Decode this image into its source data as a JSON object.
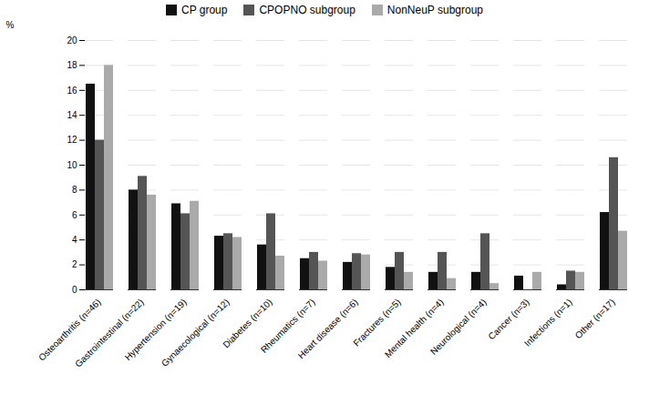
{
  "chart_data": {
    "type": "bar",
    "categories": [
      "Osteoarthritis (n=46)",
      "Gastrointestinal (n=22)",
      "Hypertension (n=19)",
      "Gynaecological (n=12)",
      "Diabetes (n=10)",
      "Rheumatics (n=7)",
      "Heart disease (n=6)",
      "Fractures (n=5)",
      "Mental health (n=4)",
      "Neurological (n=4)",
      "Cancer (n=3)",
      "Infections (n=1)",
      "Other (n=17)"
    ],
    "series": [
      {
        "name": "CP group",
        "color": "#111111",
        "values": [
          16.5,
          8.0,
          6.9,
          4.3,
          3.6,
          2.5,
          2.2,
          1.8,
          1.4,
          1.4,
          1.1,
          0.4,
          6.2
        ]
      },
      {
        "name": "CPOPNO subgroup",
        "color": "#555555",
        "values": [
          12.0,
          9.1,
          6.1,
          4.5,
          6.1,
          3.0,
          2.9,
          3.0,
          3.0,
          4.5,
          0.0,
          1.5,
          10.6
        ]
      },
      {
        "name": "NonNeuP subgroup",
        "color": "#aaaaaa",
        "values": [
          18.0,
          7.6,
          7.1,
          4.2,
          2.7,
          2.3,
          2.8,
          1.4,
          0.9,
          0.5,
          1.4,
          1.4,
          4.7
        ]
      }
    ],
    "ylabel": "%",
    "ylim": [
      0,
      20
    ],
    "yticks": [
      0,
      2,
      4,
      6,
      8,
      10,
      12,
      14,
      16,
      18,
      20
    ],
    "grid": true,
    "legend": "top"
  }
}
